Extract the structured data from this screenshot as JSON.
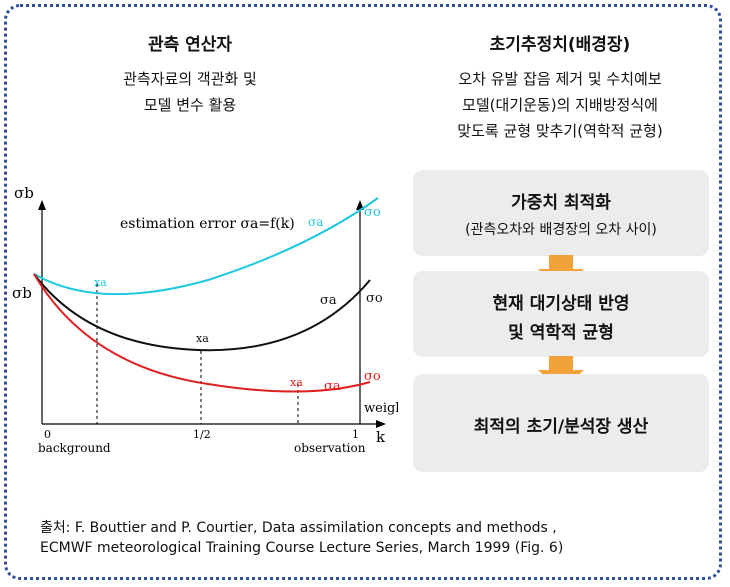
{
  "left": {
    "title": "관측 연산자",
    "line1": "관측자료의 객관화 및",
    "line2": "모델 변수 활용"
  },
  "right": {
    "title": "초기추정치(배경장)",
    "line1": "오차 유발 잡음 제거 및 수치예보",
    "line2": "모델(대기운동)의 지배방정식에",
    "line3": "맞도록 균형 맞추기(역학적 균형)"
  },
  "steps": [
    {
      "title": "가중치 최적화",
      "sub": "(관측오차와 배경장의 오차 사이)"
    },
    {
      "title_line1": "현재 대기상태 반영",
      "title_line2": "및 역학적 균형"
    },
    {
      "title": "최적의 초기/분석장 생산"
    }
  ],
  "chart": {
    "y_axis_label": "σb",
    "left_label": "σb",
    "annotation": "estimation error σa=f(k)",
    "x_axis_label": "k",
    "weight_label": "weight",
    "ticks": [
      "0",
      "1/2",
      "1"
    ],
    "tick_captions": [
      "background",
      "observation"
    ],
    "curves": [
      {
        "color": "#1ec8e0",
        "label": "σa",
        "end_label": "σo",
        "min_label": "xa"
      },
      {
        "color": "#111111",
        "label": "σa",
        "end_label": "σo",
        "min_label": "xa"
      },
      {
        "color": "#e02020",
        "label": "σa",
        "end_label": "σo",
        "min_label": "xa"
      }
    ]
  },
  "source": {
    "line1": "출처: F. Bouttier and P. Courtier, Data assimilation concepts and methods ,",
    "line2": "ECMWF meteorological Training Course Lecture Series, March 1999  (Fig. 6)"
  }
}
